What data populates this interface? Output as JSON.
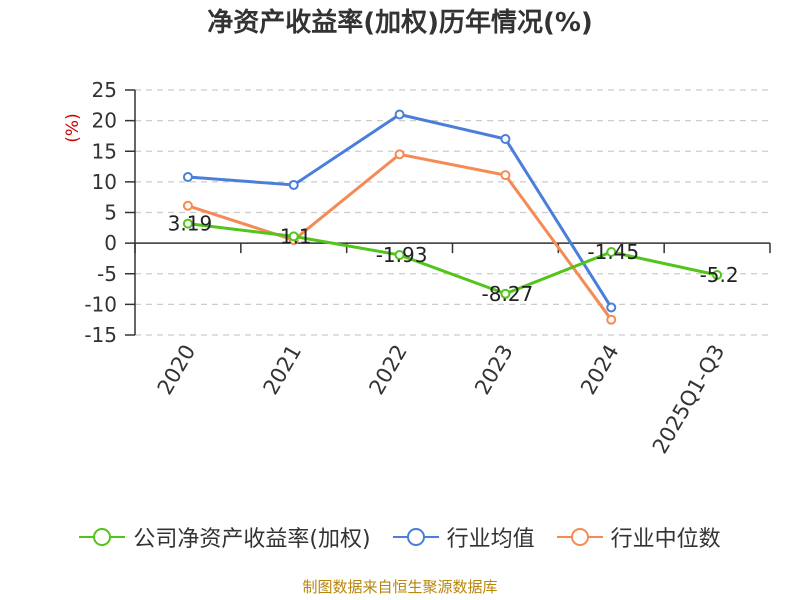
{
  "chart_data": {
    "type": "line",
    "title": "净资产收益率(加权)历年情况(%)",
    "ylabel": "(%)",
    "categories": [
      "2020",
      "2021",
      "2022",
      "2023",
      "2024",
      "2025Q1-Q3"
    ],
    "ylim": [
      -15,
      25
    ],
    "yticks": [
      25,
      20,
      15,
      10,
      5,
      0,
      -5,
      -10,
      -15
    ],
    "grid": true,
    "legend_position": "bottom",
    "series": [
      {
        "name": "公司净资产收益率(加权)",
        "color": "#52c41a",
        "values": [
          3.19,
          1.1,
          -1.93,
          -8.27,
          -1.45,
          -5.2
        ],
        "labels": [
          "3.19",
          "1.1",
          "-1.93",
          "-8.27",
          "-1.45",
          "-5.2"
        ]
      },
      {
        "name": "行业均值",
        "color": "#4a7fd9",
        "values": [
          10.8,
          9.5,
          21.0,
          17.0,
          -10.5,
          null
        ]
      },
      {
        "name": "行业中位数",
        "color": "#f58a55",
        "values": [
          6.1,
          0.5,
          14.5,
          11.1,
          -12.5,
          null
        ]
      }
    ],
    "source": "制图数据来自恒生聚源数据库"
  }
}
